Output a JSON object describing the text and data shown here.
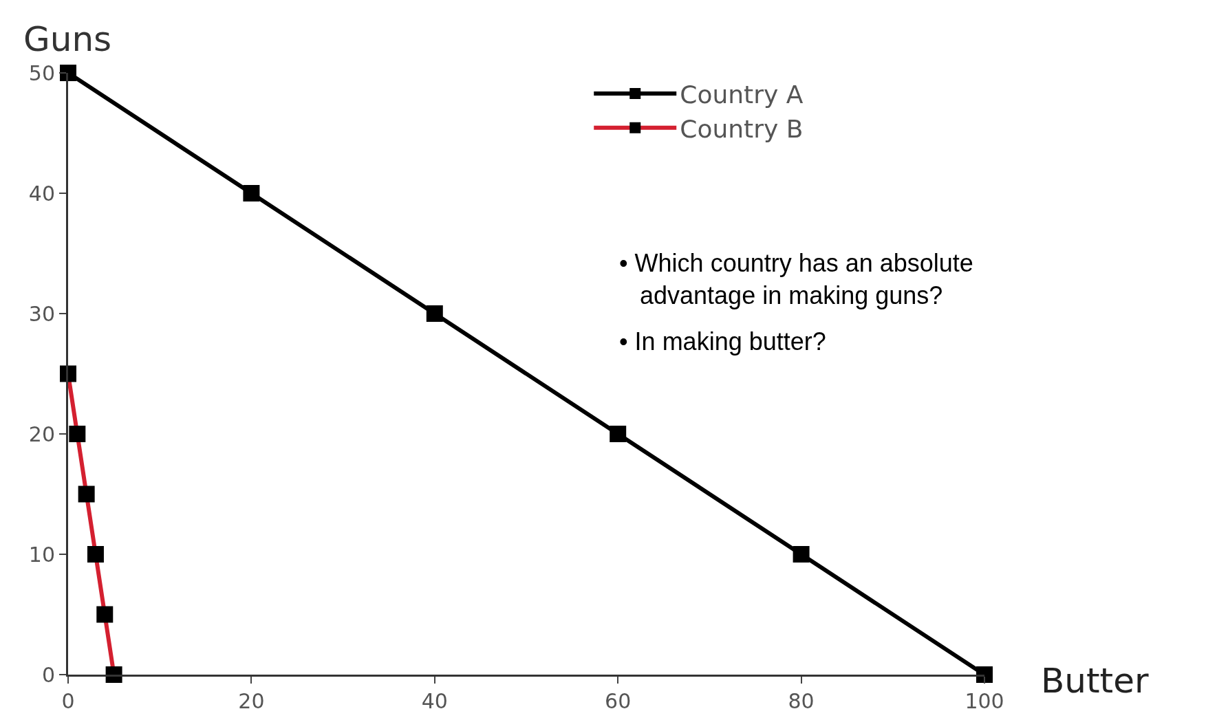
{
  "chart_data": {
    "type": "line",
    "xlabel": "Butter",
    "ylabel": "Guns",
    "series": [
      {
        "name": "Country A",
        "color": "#000000",
        "x": [
          0,
          20,
          40,
          60,
          80,
          100
        ],
        "values": [
          50,
          40,
          30,
          20,
          10,
          0
        ]
      },
      {
        "name": "Country B",
        "color": "#d42030",
        "x": [
          0,
          1,
          2,
          3,
          4,
          5
        ],
        "values": [
          25,
          20,
          15,
          10,
          5,
          0
        ]
      }
    ],
    "xlim": [
      0,
      100
    ],
    "xticks": [
      0,
      20,
      40,
      60,
      80,
      100
    ],
    "ylim": [
      0,
      50
    ],
    "yticks": [
      0,
      10,
      20,
      30,
      40,
      50
    ],
    "grid": false,
    "legend": "top right",
    "marker": "square",
    "line_style": "solid",
    "annotations": [
      "• Which country has an absolute advantage in making guns?",
      "• In making butter?"
    ]
  }
}
